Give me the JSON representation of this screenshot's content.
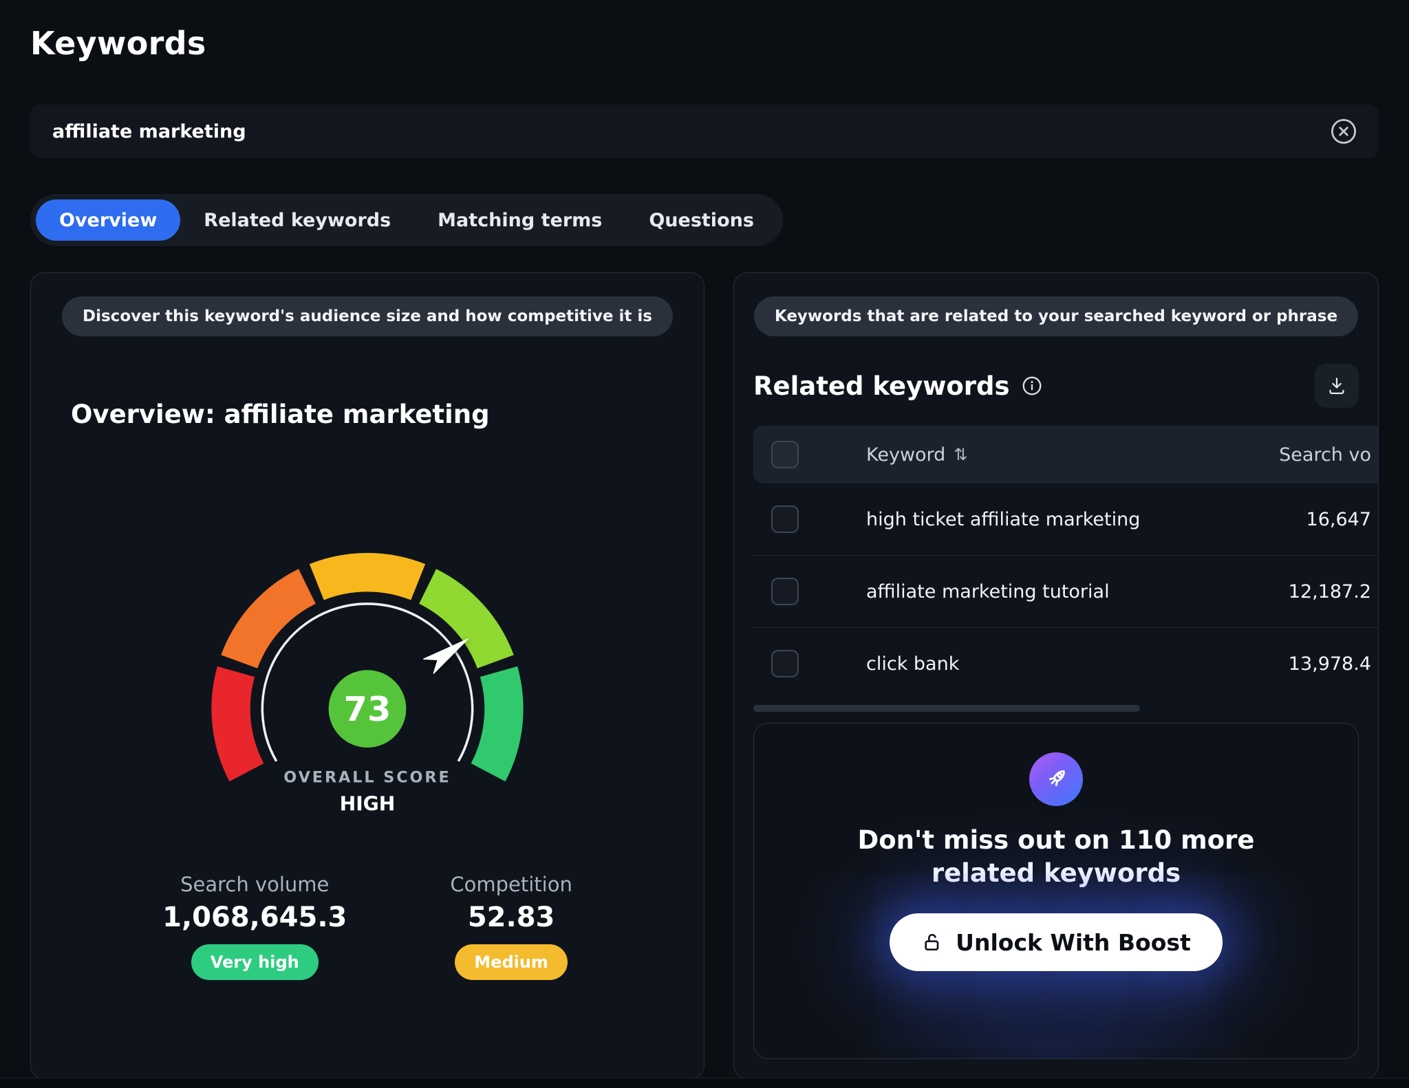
{
  "page": {
    "title": "Keywords"
  },
  "colors": {
    "accent": "#2e6cf0",
    "very_high": "#2ecc80",
    "medium": "#f3bb2d"
  },
  "icons": {
    "clear": "x-circle",
    "download": "download-tray",
    "info": "info-circle",
    "sort": "sort-arrows",
    "rocket": "rocket",
    "lock": "unlock"
  },
  "search": {
    "value": "affiliate marketing"
  },
  "tabs": [
    {
      "label": "Overview",
      "active": true
    },
    {
      "label": "Related keywords",
      "active": false
    },
    {
      "label": "Matching terms",
      "active": false
    },
    {
      "label": "Questions",
      "active": false
    }
  ],
  "overview": {
    "badge": "Discover this keyword's audience size and how competitive it is",
    "title": "Overview: affiliate marketing",
    "gauge": {
      "value": 73,
      "min": 0,
      "max": 100,
      "value_label": "73",
      "caption": "OVERALL SCORE",
      "level": "HIGH",
      "start_angle": 210,
      "end_angle": -30,
      "segment_colors": [
        "#e8262c",
        "#f2732a",
        "#f7b71d",
        "#8fd930",
        "#31c96e"
      ],
      "center_color": "#55c43b"
    },
    "stats": [
      {
        "label": "Search volume",
        "value": "1,068,645.3",
        "badge": "Very high",
        "badge_color": "#2ecc80"
      },
      {
        "label": "Competition",
        "value": "52.83",
        "badge": "Medium",
        "badge_color": "#f3bb2d"
      }
    ]
  },
  "related": {
    "badge": "Keywords that are related to your searched keyword or phrase",
    "title": "Related keywords",
    "sort_glyph": "⇅",
    "columns": {
      "keyword": "Keyword",
      "volume": "Search vo"
    },
    "rows": [
      {
        "keyword": "high ticket affiliate marketing",
        "volume": "16,647"
      },
      {
        "keyword": "affiliate marketing tutorial",
        "volume": "12,187.2"
      },
      {
        "keyword": "click bank",
        "volume": "13,978.4"
      }
    ]
  },
  "boost": {
    "message": "Don't miss out on 110 more related keywords",
    "button": "Unlock With Boost"
  },
  "chart_data": {
    "type": "gauge",
    "title": "Overview: affiliate marketing",
    "value": 73,
    "min": 0,
    "max": 100,
    "label": "OVERALL SCORE",
    "level": "HIGH",
    "segments": [
      "red",
      "orange",
      "amber",
      "light-green",
      "green"
    ],
    "metrics": [
      {
        "name": "Search volume",
        "value": 1068645.3,
        "rating": "Very high"
      },
      {
        "name": "Competition",
        "value": 52.83,
        "rating": "Medium"
      }
    ]
  }
}
